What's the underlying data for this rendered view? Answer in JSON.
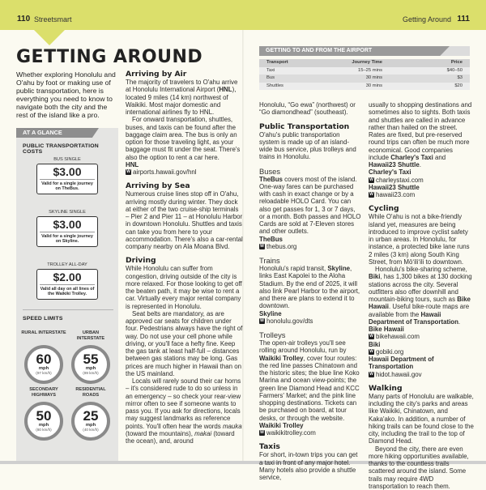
{
  "colors": {
    "band": "#dbdf6b",
    "sidebar": "#e5e5e3",
    "accent_gray": "#8e8e8e",
    "page": "#fbfaf1"
  },
  "header": {
    "left_page_num": "110",
    "left_section": "Streetsmart",
    "right_section": "Getting Around",
    "right_page_num": "111"
  },
  "title": "GETTING AROUND",
  "intro": "Whether exploring Honolulu and O'ahu by foot or making use of public transportation, here is everything you need to know to navigate both the city and the rest of the island like a pro.",
  "at_a_glance": {
    "label": "AT A GLANCE",
    "costs_title": "PUBLIC TRANSPORTATION COSTS",
    "tickets": [
      {
        "label": "BUS SINGLE",
        "price": "$3.00",
        "desc": "Valid for a single journey on TheBus."
      },
      {
        "label": "SKYLINE SINGLE",
        "price": "$3.00",
        "desc": "Valid for a single journey on Skyline."
      },
      {
        "label": "TROLLEY ALL-DAY",
        "price": "$2.00",
        "desc": "Valid all day on all lines of the Waikiki Trolley."
      }
    ],
    "speed_title": "SPEED LIMITS",
    "limits": [
      {
        "label": "RURAL INTERSTATE",
        "value": "60",
        "unit": "mph",
        "metric": "(97 km/h)"
      },
      {
        "label": "URBAN INTERSTATE",
        "value": "55",
        "unit": "mph",
        "metric": "(89 km/h)"
      },
      {
        "label": "SECONDARY HIGHWAYS",
        "value": "50",
        "unit": "mph",
        "metric": "(80 km/h)"
      },
      {
        "label": "RESIDENTIAL ROADS",
        "value": "25",
        "unit": "mph",
        "metric": "(40 km/h)"
      }
    ]
  },
  "airport_table": {
    "title": "GETTING TO AND FROM THE AIRPORT",
    "headers": [
      "Transport",
      "Journey Time",
      "Price"
    ],
    "rows": [
      [
        "Taxi",
        "15–25 mins",
        "$40–50"
      ],
      [
        "Bus",
        "30 mins",
        "$3"
      ],
      [
        "Shuttles",
        "30 mins",
        "$20"
      ]
    ]
  },
  "columns": [
    [
      {
        "type": "h3",
        "text": "Arriving by Air"
      },
      {
        "type": "p",
        "seg": [
          {
            "t": "The majority of travelers to O'ahu arrive at Honolulu International Airport ("
          },
          {
            "t": "HNL",
            "b": true
          },
          {
            "t": "), located 9 miles (14 km) northwest of Waikiki. Most major domestic and international airlines fly to HNL."
          }
        ]
      },
      {
        "type": "p",
        "ind": true,
        "seg": [
          {
            "t": "For onward transportation, shuttles, buses, and taxis can be found after the baggage claim area. The bus is only an option for those traveling light, as your baggage must fit under the seat. There's also the option to rent a car here."
          }
        ]
      },
      {
        "type": "org",
        "text": "HNL"
      },
      {
        "type": "web",
        "text": "airports.hawaii.gov/hnl"
      },
      {
        "type": "h3",
        "text": "Arriving by Sea"
      },
      {
        "type": "p",
        "seg": [
          {
            "t": "Numerous cruise lines stop off in O'ahu, arriving mostly during winter. They dock at either of the two cruise-ship terminals – Pier 2 and Pier 11 – at Honolulu Harbor in downtown Honolulu. Shuttles and taxis can take you from here to your accommodation. There's also a car-rental company nearby on Ala Moana Blvd."
          }
        ]
      },
      {
        "type": "h3",
        "text": "Driving"
      },
      {
        "type": "p",
        "seg": [
          {
            "t": "While Honolulu can suffer from congestion, driving outside of the city is more relaxed. For those looking to get off the beaten path, it may be wise to rent a car. Virtually every major rental company is represented in Honolulu."
          }
        ]
      },
      {
        "type": "p",
        "ind": true,
        "seg": [
          {
            "t": "Seat belts are mandatory, as are approved car seats for children under four. Pedestrians always have the right of way. Do not use your cell phone while driving, or you'll face a hefty fine. Keep the gas tank at least half-full – distances between gas stations may be long. Gas prices are much higher in Hawaii than on the US mainland."
          }
        ]
      },
      {
        "type": "p",
        "ind": true,
        "seg": [
          {
            "t": "Locals will rarely sound their car horns – it's considered rude to do so unless in an emergency – so check your rear-view mirror often to see if someone wants to pass you. If you ask for directions, locals may suggest landmarks as reference points. You'll often hear the words "
          },
          {
            "t": "mauka",
            "i": true
          },
          {
            "t": " (toward the mountains), "
          },
          {
            "t": "makai",
            "i": true
          },
          {
            "t": " (toward the ocean), and, around"
          }
        ]
      }
    ],
    [
      {
        "type": "p",
        "seg": [
          {
            "t": "Honolulu, “Go ewa” (northwest) or “Go diamondhead” (southeast)."
          }
        ]
      },
      {
        "type": "h3",
        "text": "Public Transportation"
      },
      {
        "type": "p",
        "seg": [
          {
            "t": "O'ahu's public transportation system is made up of an island-wide bus service, plus trolleys and trains in Honolulu."
          }
        ]
      },
      {
        "type": "h4",
        "text": "Buses"
      },
      {
        "type": "p",
        "seg": [
          {
            "t": "TheBus",
            "b": true
          },
          {
            "t": " covers most of the island. One-way fares can be purchased with cash in exact change or by a reloadable HOLO Card. You can also get passes for 1, 3 or 7 days, or a month. Both passes and HOLO Cards are sold at 7-Eleven stores and other outlets."
          }
        ]
      },
      {
        "type": "org",
        "text": "TheBus"
      },
      {
        "type": "web",
        "text": "thebus.org"
      },
      {
        "type": "h4",
        "text": "Trains"
      },
      {
        "type": "p",
        "seg": [
          {
            "t": "Honolulu's rapid transit, "
          },
          {
            "t": "Skyline",
            "b": true
          },
          {
            "t": ", links East Kapolei to the Aloha Stadium. By the end of 2025, it will also link Pearl Harbor to the airport, and there are plans to extend it to downtown."
          }
        ]
      },
      {
        "type": "org",
        "text": "Skyline"
      },
      {
        "type": "web",
        "text": "honolulu.gov/dts"
      },
      {
        "type": "h4",
        "text": "Trolleys"
      },
      {
        "type": "p",
        "seg": [
          {
            "t": "The open-air trolleys you'll see rolling around Honolulu, run by "
          },
          {
            "t": "Waikiki Trolley",
            "b": true
          },
          {
            "t": ", cover four routes: the red line passes Chinatown and the historic sites; the blue line Koko Marina and ocean view-points; the green line Diamond Head and KCC Farmers' Market; and the pink line shopping destinations. Tickets can be purchased on board, at tour desks, or through the website."
          }
        ]
      },
      {
        "type": "org",
        "text": "Waikiki Trolley"
      },
      {
        "type": "web",
        "text": "waikikitrolley.com"
      },
      {
        "type": "h3",
        "text": "Taxis"
      },
      {
        "type": "p",
        "seg": [
          {
            "t": "For short, in-town trips you can get a taxi in front of any major hotel. Many hotels also provide a shuttle service,"
          }
        ]
      }
    ],
    [
      {
        "type": "p",
        "seg": [
          {
            "t": "usually to shopping destinations and sometimes also to sights. Both taxis and shuttles are called in advance rather than hailed on the street. Rates are fixed, but pre-reserved round trips can often be much more economical. Good companies include "
          },
          {
            "t": "Charley's Taxi",
            "b": true
          },
          {
            "t": " and "
          },
          {
            "t": "Hawaii23 Shuttle",
            "b": true
          },
          {
            "t": "."
          }
        ]
      },
      {
        "type": "org",
        "text": "Charley's Taxi"
      },
      {
        "type": "web",
        "text": "charleystaxi.com"
      },
      {
        "type": "org",
        "text": "Hawaii23 Shuttle"
      },
      {
        "type": "web",
        "text": "hawaii23.com"
      },
      {
        "type": "h3",
        "text": "Cycling"
      },
      {
        "type": "p",
        "seg": [
          {
            "t": "While O'ahu is not a bike-friendly island yet, measures are being introduced to improve cyclist safety in urban areas. In Honolulu, for instance, a protected bike lane runs 2 miles (3 km) along South King Street, from Mōʻiliʻili to downtown."
          }
        ]
      },
      {
        "type": "p",
        "ind": true,
        "seg": [
          {
            "t": "Honolulu's bike-sharing scheme, "
          },
          {
            "t": "Biki",
            "b": true
          },
          {
            "t": ", has 1,300 bikes at 130 docking stations across the city. Several outfitters also offer downhill and mountain-biking tours, such as "
          },
          {
            "t": "Bike Hawaii",
            "b": true
          },
          {
            "t": ". Useful bike-route maps are available from the "
          },
          {
            "t": "Hawaii Department of Transportation",
            "b": true
          },
          {
            "t": "."
          }
        ]
      },
      {
        "type": "org",
        "text": "Bike Hawaii"
      },
      {
        "type": "web",
        "text": "bikehawaii.com"
      },
      {
        "type": "org",
        "text": "Biki"
      },
      {
        "type": "web",
        "text": "gobiki.org"
      },
      {
        "type": "org",
        "text": "Hawaii Department of Transportation"
      },
      {
        "type": "web",
        "text": "hidot.hawaii.gov"
      },
      {
        "type": "h3",
        "text": "Walking"
      },
      {
        "type": "p",
        "seg": [
          {
            "t": "Many parts of Honolulu are walkable, including the city's parks and areas like Waikiki, Chinatown, and Kaka'ako. In addition, a number of hiking trails can be found close to the city, including the trail to the top of Diamond Head."
          }
        ]
      },
      {
        "type": "p",
        "ind": true,
        "seg": [
          {
            "t": "Beyond the city, there are even more hiking opportunities available, thanks to the countless trails scattered around the island. Some trails may require 4WD transportation to reach them."
          }
        ]
      }
    ]
  ]
}
